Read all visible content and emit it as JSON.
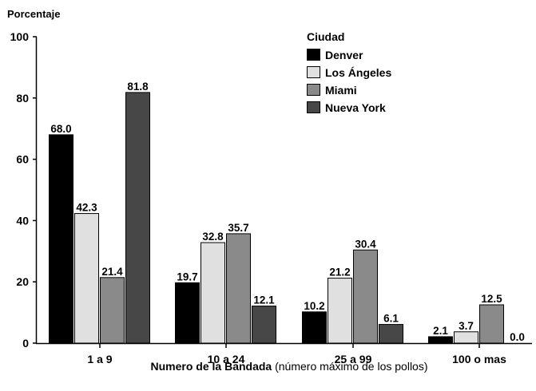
{
  "chart_data": {
    "type": "bar",
    "ylabel": "Porcentaje",
    "xlabel_bold": "Numero de la Bandada",
    "xlabel_normal": " (número máximo de los pollos)",
    "ylim": [
      0,
      100
    ],
    "yticks": [
      "0",
      "20",
      "40",
      "60",
      "80",
      "100"
    ],
    "categories": [
      "1 a 9",
      "10 a 24",
      "25 a 99",
      "100 o mas"
    ],
    "legend_title": "Ciudad",
    "legend_position": "top-right",
    "grid": false,
    "series": [
      {
        "name": "Denver",
        "color": "#000000",
        "values": [
          68.0,
          19.7,
          10.2,
          2.1
        ],
        "labels": [
          "68.0",
          "19.7",
          "10.2",
          "2.1"
        ]
      },
      {
        "name": "Los Ángeles",
        "color": "#e0e0e0",
        "values": [
          42.3,
          32.8,
          21.2,
          3.7
        ],
        "labels": [
          "42.3",
          "32.8",
          "21.2",
          "3.7"
        ]
      },
      {
        "name": "Miami",
        "color": "#8a8a8a",
        "values": [
          21.4,
          35.7,
          30.4,
          12.5
        ],
        "labels": [
          "21.4",
          "35.7",
          "30.4",
          "12.5"
        ]
      },
      {
        "name": "Nueva York",
        "color": "#474747",
        "values": [
          81.8,
          12.1,
          6.1,
          0.0
        ],
        "labels": [
          "81.8",
          "12.1",
          "6.1",
          "0.0"
        ]
      }
    ]
  }
}
